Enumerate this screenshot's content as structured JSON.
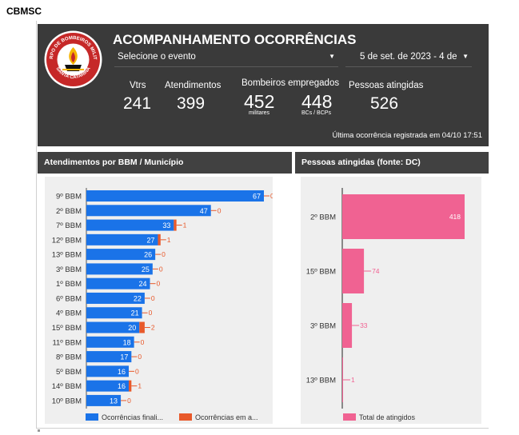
{
  "app": {
    "title": "CBMSC"
  },
  "header": {
    "logo_text_top": "CORPO DE BOMBEIROS MILITAR",
    "logo_text_bottom": "SANTA CATARINA",
    "title": "ACOMPANHAMENTO OCORRÊNCIAS",
    "event_select": {
      "value": "Selecione o evento",
      "icon": "caret-down-icon"
    },
    "date_range": {
      "value": "5 de set. de 2023 - 4 de",
      "icon": "caret-down-icon"
    },
    "last_update": "Última ocorrência registrada em 04/10 17:51",
    "kpis": {
      "vtrs": {
        "label": "Vtrs",
        "value": "241"
      },
      "atendimentos": {
        "label": "Atendimentos",
        "value": "399"
      },
      "bombeiros": {
        "label": "Bombeiros empregados",
        "militares_value": "452",
        "militares_sub": "militares",
        "bcs_value": "448",
        "bcs_sub": "BCs / BCPs"
      },
      "pessoas": {
        "label": "Pessoas atingidas",
        "value": "526"
      }
    }
  },
  "panels": {
    "bbm_title": "Atendimentos por BBM / Município",
    "people_title": "Pessoas atingidas (fonte: DC)"
  },
  "chart_data": [
    {
      "type": "bar",
      "orientation": "horizontal",
      "categories": [
        "9º BBM",
        "2º BBM",
        "7º BBM",
        "12º BBM",
        "13º BBM",
        "3º BBM",
        "1º BBM",
        "6º BBM",
        "4º BBM",
        "15º BBM",
        "11º BBM",
        "8º BBM",
        "5º BBM",
        "14º BBM",
        "10º BBM"
      ],
      "series": [
        {
          "name": "Ocorrências finali...",
          "color": "#1a73e8",
          "values": [
            67,
            47,
            33,
            27,
            26,
            25,
            24,
            22,
            21,
            20,
            18,
            17,
            16,
            16,
            13
          ]
        },
        {
          "name": "Ocorrências em a...",
          "color": "#e8592a",
          "values": [
            0,
            0,
            1,
            1,
            0,
            0,
            0,
            0,
            0,
            2,
            0,
            0,
            0,
            1,
            0
          ]
        }
      ],
      "xlim": [
        0,
        67
      ],
      "legend": "bottom",
      "grid": false
    },
    {
      "type": "bar",
      "orientation": "horizontal",
      "categories": [
        "2º BBM",
        "15º BBM",
        "3º BBM",
        "13º BBM"
      ],
      "series": [
        {
          "name": "Total de atingidos",
          "color": "#f06292",
          "values": [
            418,
            74,
            33,
            1
          ]
        }
      ],
      "xlim": [
        0,
        418
      ],
      "legend": "bottom",
      "grid": false
    }
  ]
}
